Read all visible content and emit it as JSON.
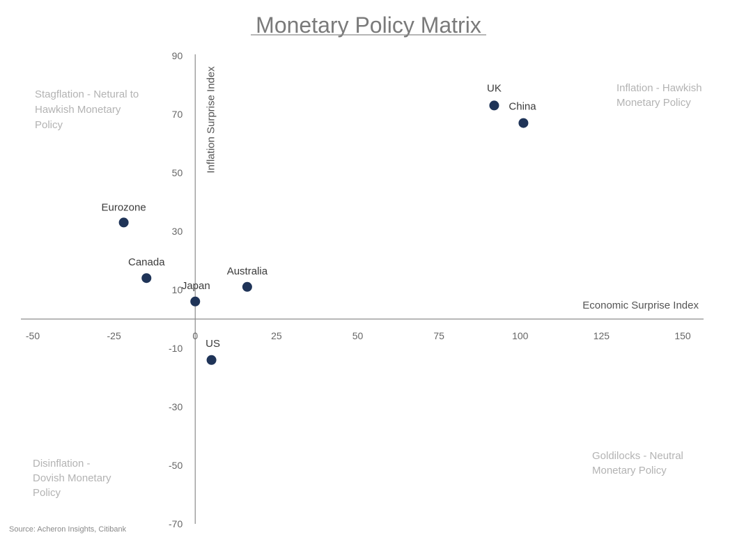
{
  "chart_data": {
    "type": "scatter",
    "title": "Monetary Policy Matrix",
    "xlabel": "Economic Surprise Index",
    "ylabel": "Inflation Surprise Index",
    "xlim": [
      -50,
      150
    ],
    "ylim": [
      -70,
      90
    ],
    "x_ticks": [
      -50,
      -25,
      0,
      25,
      50,
      75,
      100,
      125,
      150
    ],
    "y_ticks": [
      90,
      70,
      50,
      30,
      10,
      -10,
      -30,
      -50,
      -70
    ],
    "grid": false,
    "marker_color": "#1f3458",
    "points": [
      {
        "label": "UK",
        "x": 92,
        "y": 73
      },
      {
        "label": "China",
        "x": 101,
        "y": 67
      },
      {
        "label": "Eurozone",
        "x": -22,
        "y": 33
      },
      {
        "label": "Canada",
        "x": -15,
        "y": 14
      },
      {
        "label": "Australia",
        "x": 16,
        "y": 11
      },
      {
        "label": "Japan",
        "x": 0,
        "y": 6
      },
      {
        "label": "US",
        "x": 5,
        "y": -14
      }
    ],
    "quadrant_labels": {
      "top_left": [
        "Stagflation - Netural to",
        "Hawkish Monetary",
        "Policy"
      ],
      "top_right": [
        "Inflation - Hawkish",
        "Monetary Policy"
      ],
      "bottom_left": [
        "Disinflation -",
        "Dovish Monetary",
        "Policy"
      ],
      "bottom_right": [
        "Goldilocks - Neutral",
        "Monetary Policy"
      ]
    },
    "source": "Source: Acheron Insights, Citibank"
  }
}
